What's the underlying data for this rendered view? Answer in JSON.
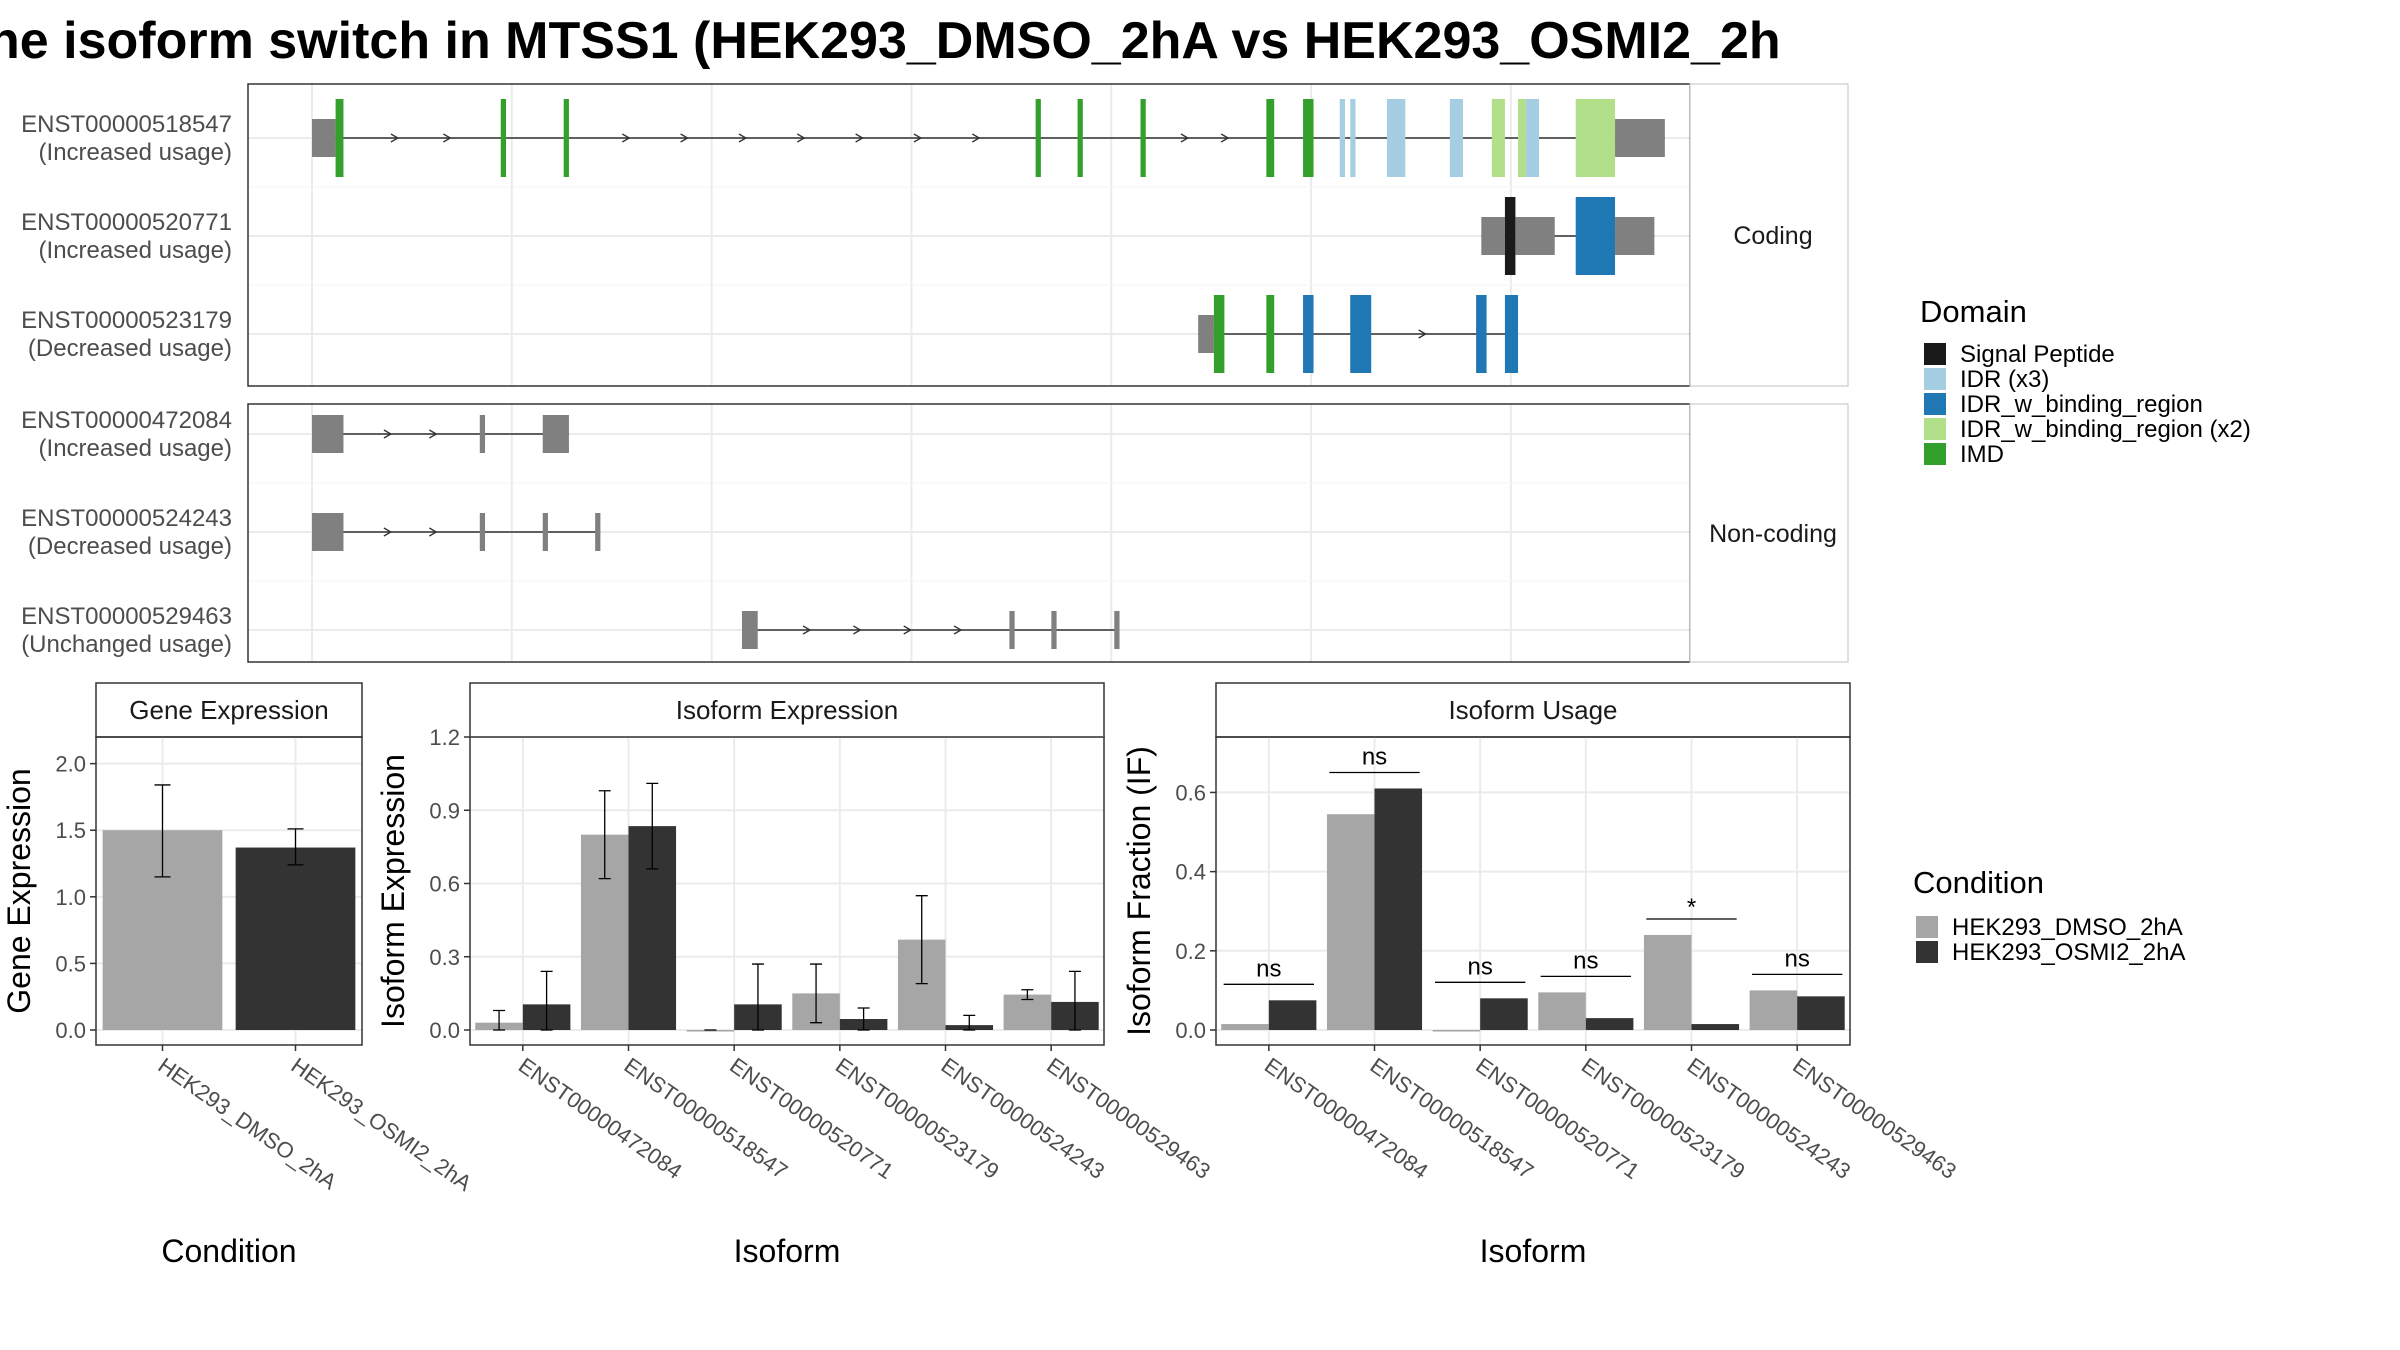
{
  "title": "ne isoform switch in MTSS1 (HEK293_DMSO_2hA vs HEK293_OSMI2_2h",
  "colors": {
    "condition1": "#a6a6a6",
    "condition2": "#333333",
    "exon": "#808080",
    "Signal Peptide": "#1a1a1a",
    "IDR (x3)": "#a6cee3",
    "IDR_w_binding_region": "#1f78b4",
    "IDR_w_binding_region (x2)": "#b2df8a",
    "IMD": "#33a02c"
  },
  "transcript_plot": {
    "groups": [
      {
        "label": "Coding",
        "rows": [
          {
            "id": "ENST00000518547",
            "usage": "(Increased usage)"
          },
          {
            "id": "ENST00000520771",
            "usage": "(Increased usage)"
          },
          {
            "id": "ENST00000523179",
            "usage": "(Decreased usage)"
          }
        ]
      },
      {
        "label": "Non-coding",
        "rows": [
          {
            "id": "ENST00000472084",
            "usage": "(Increased usage)"
          },
          {
            "id": "ENST00000524243",
            "usage": "(Decreased usage)"
          },
          {
            "id": "ENST00000529463",
            "usage": "(Unchanged usage)"
          }
        ]
      }
    ],
    "transcripts": [
      {
        "id": "ENST00000518547",
        "exons": [
          {
            "s": 0,
            "e": 1.8,
            "t": "utr"
          },
          {
            "s": 1.8,
            "e": 2.4,
            "t": "IMD"
          },
          {
            "s": 14.4,
            "e": 14.8,
            "t": "IMD"
          },
          {
            "s": 19.2,
            "e": 19.6,
            "t": "IMD"
          },
          {
            "s": 55.2,
            "e": 55.6,
            "t": "IMD"
          },
          {
            "s": 58.4,
            "e": 58.8,
            "t": "IMD"
          },
          {
            "s": 63.2,
            "e": 63.6,
            "t": "IMD"
          },
          {
            "s": 72.8,
            "e": 73.4,
            "t": "IMD"
          },
          {
            "s": 75.6,
            "e": 76.4,
            "t": "IMD"
          },
          {
            "s": 78.4,
            "e": 78.8,
            "t": "IDR (x3)"
          },
          {
            "s": 79.2,
            "e": 79.6,
            "t": "IDR (x3)"
          },
          {
            "s": 82.0,
            "e": 83.4,
            "t": "IDR (x3)"
          },
          {
            "s": 86.8,
            "e": 87.8,
            "t": "IDR (x3)"
          },
          {
            "s": 90.0,
            "e": 91.0,
            "t": "IDR_w_binding_region (x2)"
          },
          {
            "s": 92.0,
            "e": 92.6,
            "t": "IDR_w_binding_region (x2)"
          },
          {
            "s": 92.6,
            "e": 93.6,
            "t": "IDR (x3)"
          },
          {
            "s": 96.4,
            "e": 99.4,
            "t": "IDR_w_binding_region (x2)"
          },
          {
            "s": 99.4,
            "e": 103.2,
            "t": "utr"
          }
        ]
      },
      {
        "id": "ENST00000520771",
        "exons": [
          {
            "s": 89.2,
            "e": 91.0,
            "t": "utr"
          },
          {
            "s": 91.0,
            "e": 91.8,
            "t": "Signal Peptide"
          },
          {
            "s": 91.8,
            "e": 94.8,
            "t": "utr"
          },
          {
            "s": 96.4,
            "e": 99.4,
            "t": "IDR_w_binding_region"
          },
          {
            "s": 99.4,
            "e": 102.4,
            "t": "utr"
          }
        ]
      },
      {
        "id": "ENST00000523179",
        "exons": [
          {
            "s": 67.6,
            "e": 68.8,
            "t": "utr"
          },
          {
            "s": 68.8,
            "e": 69.6,
            "t": "IMD"
          },
          {
            "s": 72.8,
            "e": 73.4,
            "t": "IMD"
          },
          {
            "s": 75.6,
            "e": 76.4,
            "t": "IDR_w_binding_region"
          },
          {
            "s": 79.2,
            "e": 80.8,
            "t": "IDR_w_binding_region"
          },
          {
            "s": 88.8,
            "e": 89.6,
            "t": "IDR_w_binding_region"
          },
          {
            "s": 91.0,
            "e": 92.0,
            "t": "IDR_w_binding_region"
          }
        ]
      },
      {
        "id": "ENST00000472084",
        "exons": [
          {
            "s": 0,
            "e": 2.4,
            "t": "utr"
          },
          {
            "s": 12.8,
            "e": 13.2,
            "t": "utr"
          },
          {
            "s": 17.6,
            "e": 19.6,
            "t": "utr"
          }
        ]
      },
      {
        "id": "ENST00000524243",
        "exons": [
          {
            "s": 0,
            "e": 2.4,
            "t": "utr"
          },
          {
            "s": 12.8,
            "e": 13.2,
            "t": "utr"
          },
          {
            "s": 17.6,
            "e": 18.0,
            "t": "utr"
          },
          {
            "s": 21.6,
            "e": 22.0,
            "t": "utr"
          }
        ]
      },
      {
        "id": "ENST00000529463",
        "exons": [
          {
            "s": 32.8,
            "e": 34.0,
            "t": "utr"
          },
          {
            "s": 53.2,
            "e": 53.6,
            "t": "utr"
          },
          {
            "s": 56.4,
            "e": 56.8,
            "t": "utr"
          },
          {
            "s": 61.2,
            "e": 61.6,
            "t": "utr"
          }
        ]
      }
    ]
  },
  "chart_data": [
    {
      "type": "bar",
      "strip": "Gene Expression",
      "xlabel": "Condition",
      "ylabel": "Gene Expression",
      "ylim": [
        0,
        2.2
      ],
      "yticks": [
        "0.0",
        "0.5",
        "1.0",
        "1.5",
        "2.0"
      ],
      "categories": [
        "HEK293_DMSO_2hA",
        "HEK293_OSMI2_2hA"
      ],
      "values": [
        1.5,
        1.37
      ],
      "errors": [
        [
          1.15,
          1.84
        ],
        [
          1.24,
          1.51
        ]
      ],
      "grid": true
    },
    {
      "type": "bar",
      "strip": "Isoform Expression",
      "xlabel": "Isoform",
      "ylabel": "Isoform Expression",
      "ylim": [
        0,
        1.2
      ],
      "yticks": [
        "0.0",
        "0.3",
        "0.6",
        "0.9",
        "1.2"
      ],
      "categories": [
        "ENST00000472084",
        "ENST00000518547",
        "ENST00000520771",
        "ENST00000523179",
        "ENST00000524243",
        "ENST00000529463"
      ],
      "series": [
        {
          "name": "HEK293_DMSO_2hA",
          "values": [
            0.03,
            0.8,
            0.0,
            0.15,
            0.37,
            0.145
          ],
          "errors": [
            [
              0.0,
              0.08
            ],
            [
              0.62,
              0.98
            ],
            [
              0.0,
              0.0
            ],
            [
              0.03,
              0.27
            ],
            [
              0.19,
              0.55
            ],
            [
              0.125,
              0.165
            ]
          ]
        },
        {
          "name": "HEK293_OSMI2_2hA",
          "values": [
            0.105,
            0.835,
            0.105,
            0.045,
            0.02,
            0.115
          ],
          "errors": [
            [
              0.0,
              0.24
            ],
            [
              0.66,
              1.01
            ],
            [
              0.0,
              0.27
            ],
            [
              0.0,
              0.09
            ],
            [
              0.0,
              0.06
            ],
            [
              0.0,
              0.24
            ]
          ]
        }
      ],
      "grid": true
    },
    {
      "type": "bar",
      "strip": "Isoform Usage",
      "xlabel": "Isoform",
      "ylabel": "Isoform Fraction (IF)",
      "ylim": [
        0,
        0.74
      ],
      "yticks": [
        "0.0",
        "0.2",
        "0.4",
        "0.6"
      ],
      "categories": [
        "ENST00000472084",
        "ENST00000518547",
        "ENST00000520771",
        "ENST00000523179",
        "ENST00000524243",
        "ENST00000529463"
      ],
      "series": [
        {
          "name": "HEK293_DMSO_2hA",
          "values": [
            0.015,
            0.545,
            0.0,
            0.095,
            0.24,
            0.1
          ]
        },
        {
          "name": "HEK293_OSMI2_2hA",
          "values": [
            0.075,
            0.61,
            0.08,
            0.03,
            0.015,
            0.085
          ]
        }
      ],
      "significance": [
        "ns",
        "ns",
        "ns",
        "ns",
        "*",
        "ns"
      ],
      "grid": true
    }
  ],
  "legends": {
    "domain_title": "Domain",
    "domain_items": [
      "Signal Peptide",
      "IDR (x3)",
      "IDR_w_binding_region",
      "IDR_w_binding_region (x2)",
      "IMD"
    ],
    "condition_title": "Condition",
    "condition_items": [
      "HEK293_DMSO_2hA",
      "HEK293_OSMI2_2hA"
    ]
  }
}
